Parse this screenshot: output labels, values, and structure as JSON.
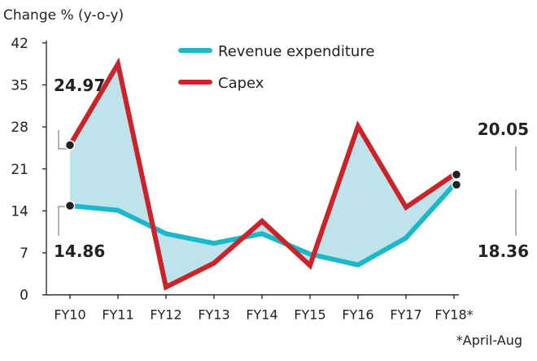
{
  "chart_data": {
    "type": "line",
    "title": "",
    "ylabel": "Change % (y-o-y)",
    "xlabel": "",
    "ylim": [
      0,
      42
    ],
    "yticks": [
      0,
      7,
      14,
      21,
      28,
      35,
      42
    ],
    "categories": [
      "FY10",
      "FY11",
      "FY12",
      "FY13",
      "FY14",
      "FY15",
      "FY16",
      "FY17",
      "FY18*"
    ],
    "series": [
      {
        "name": "Revenue expenditure",
        "color": "#1bb8c9",
        "values": [
          14.86,
          14.1,
          10.2,
          8.6,
          10.2,
          6.8,
          5.0,
          9.5,
          18.36
        ]
      },
      {
        "name": "Capex",
        "color": "#cc2229",
        "values": [
          24.97,
          38.5,
          1.3,
          5.3,
          12.3,
          4.9,
          28.1,
          14.6,
          20.05
        ]
      }
    ],
    "fill_between_color": "#bfe3ea",
    "legend_position": "top-center",
    "grid": false,
    "annotations": {
      "capex_first": "24.97",
      "revenue_first": "14.86",
      "capex_last": "20.05",
      "revenue_last": "18.36"
    },
    "footnote": "*April-Aug"
  }
}
